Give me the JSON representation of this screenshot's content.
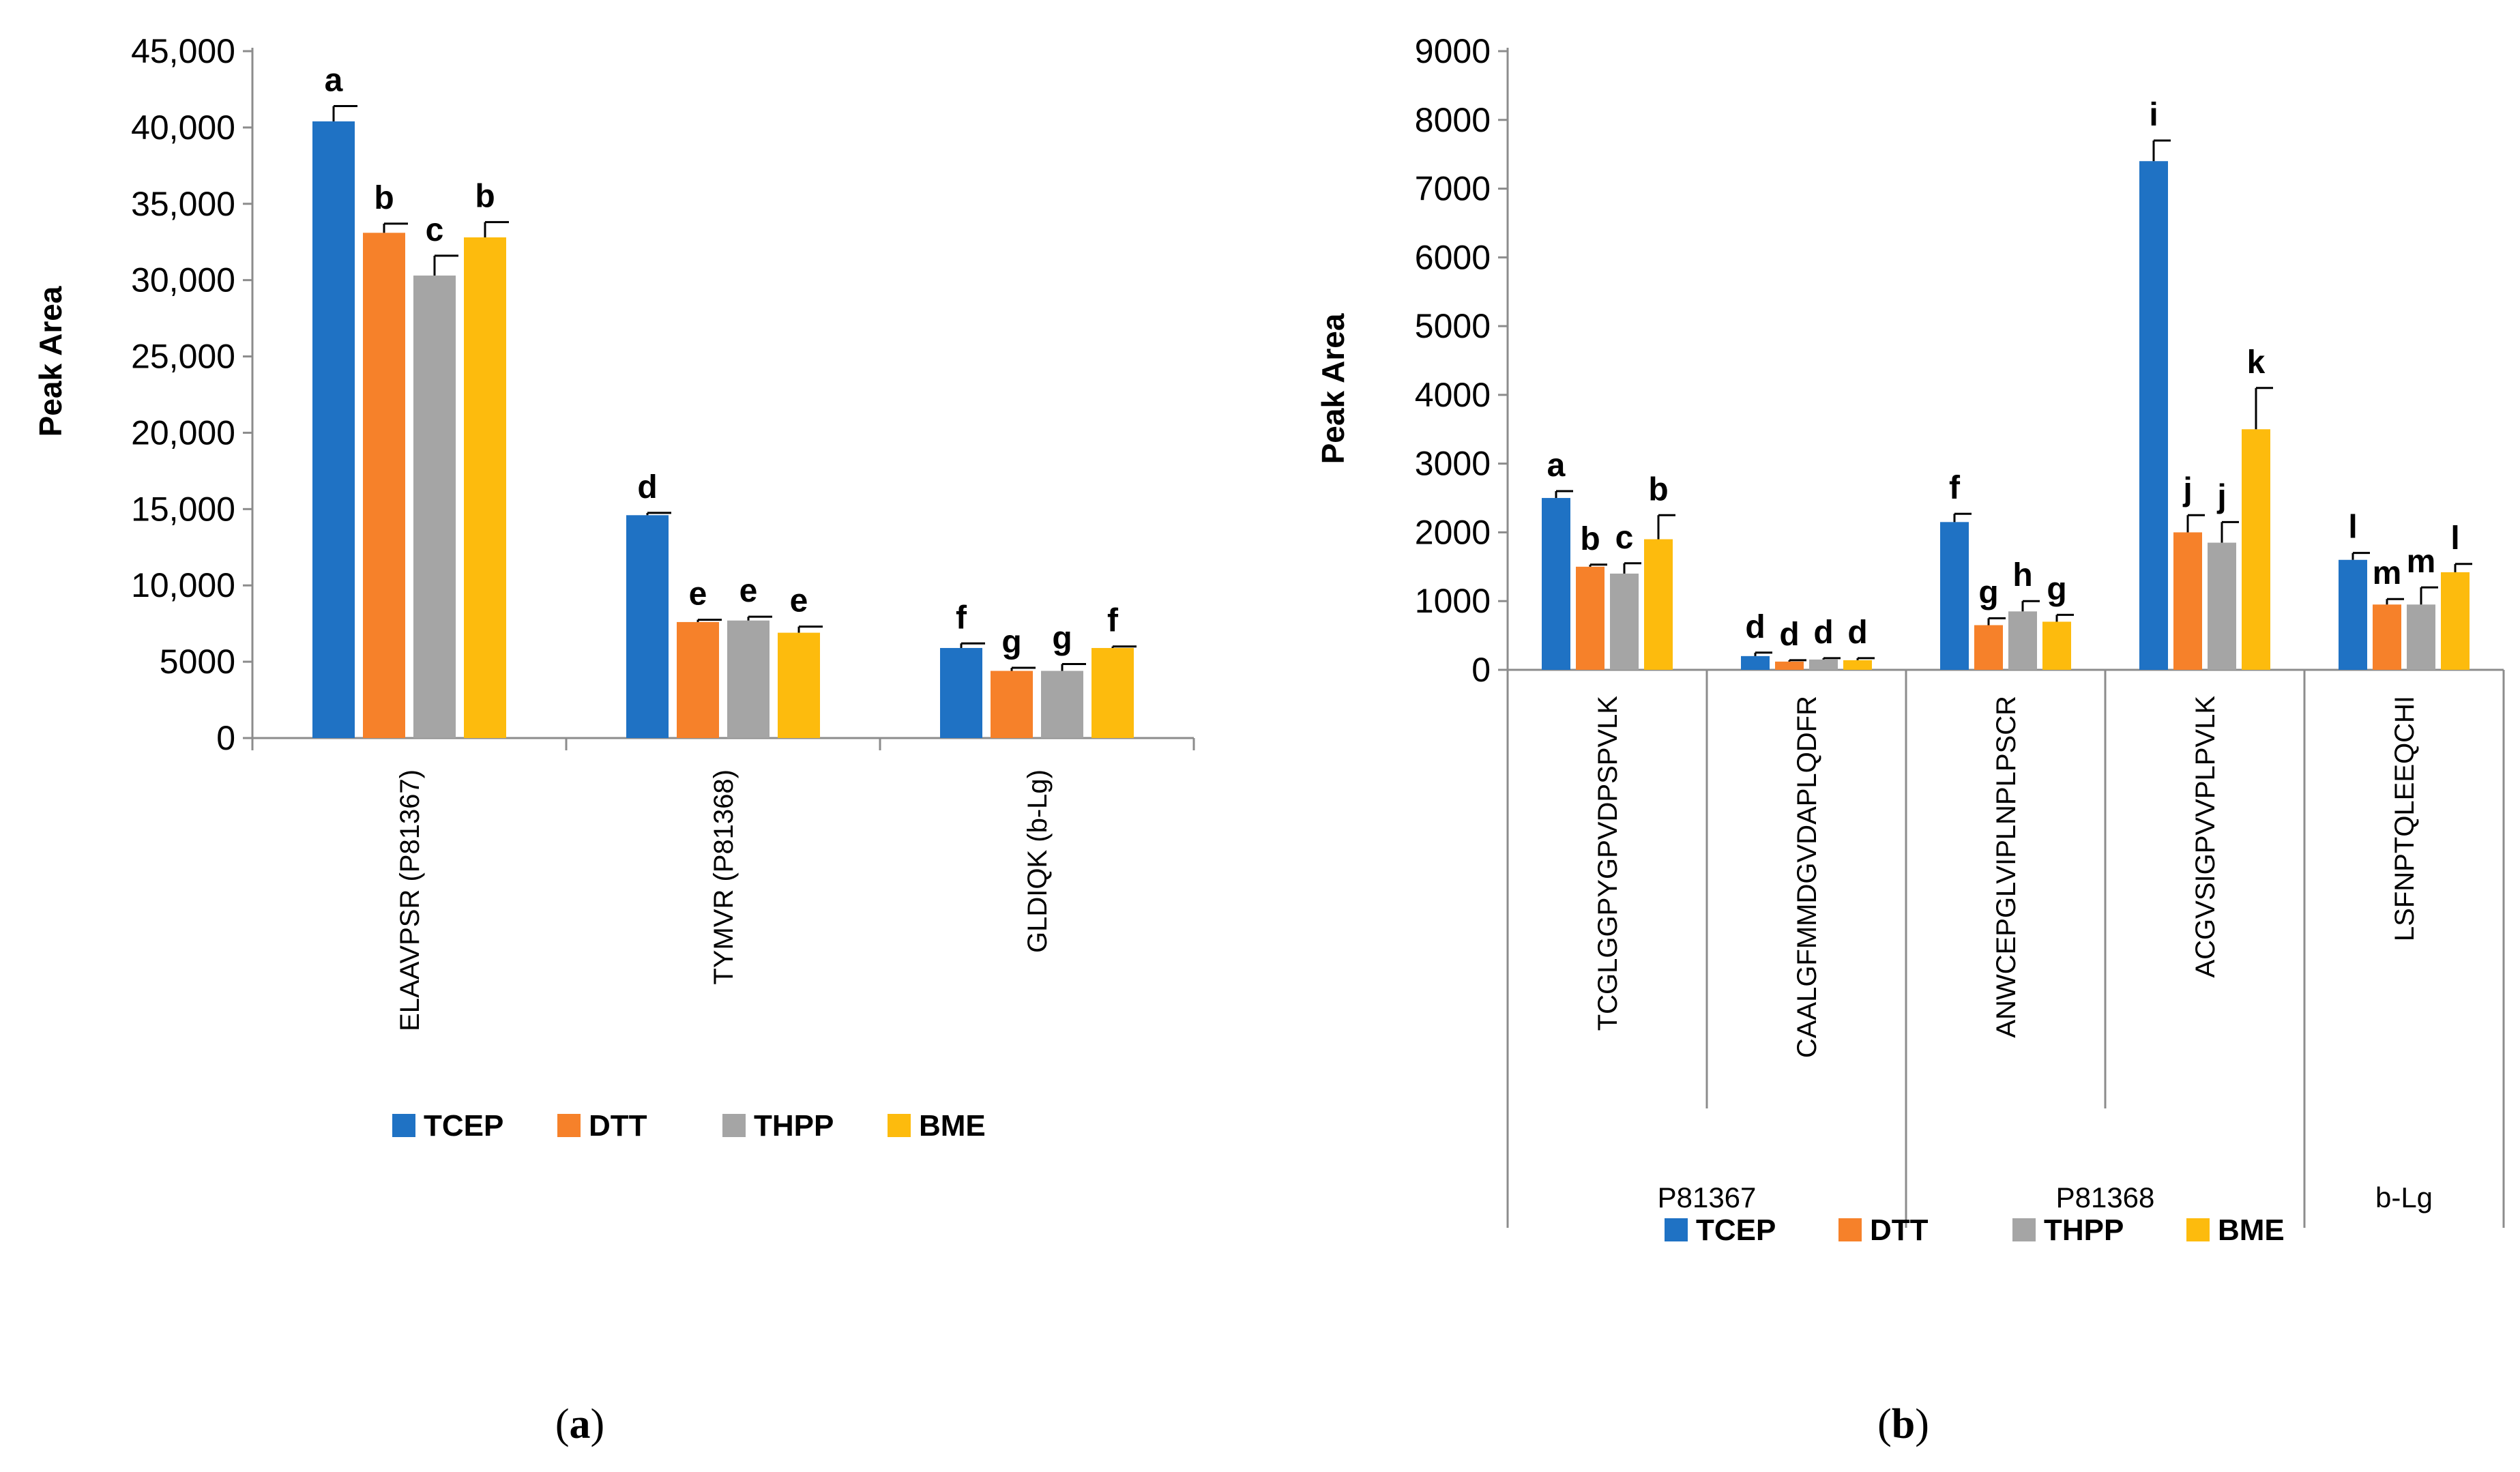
{
  "colors": {
    "TCEP": "#1f72c4",
    "DTT": "#f6812a",
    "THPP": "#a5a5a5",
    "BME": "#fdbb0d"
  },
  "series_names": [
    "TCEP",
    "DTT",
    "THPP",
    "BME"
  ],
  "chart_data": [
    {
      "type": "bar",
      "panel_caption": "a",
      "ylabel": "Peak  Area",
      "ylim": [
        0,
        45000
      ],
      "yticks": [
        "0",
        "5000",
        "10,000",
        "15,000",
        "20,000",
        "25,000",
        "30,000",
        "35,000",
        "40,000",
        "45,000"
      ],
      "categories": [
        "ELAAVPSR (P81367)",
        "TYMVR (P81368)",
        "GLDIQK (b-Lg)"
      ],
      "series": [
        {
          "name": "TCEP",
          "values": [
            40400,
            14600,
            5900
          ],
          "errors": [
            1000,
            150,
            300
          ],
          "letters": [
            "a",
            "d",
            "f"
          ]
        },
        {
          "name": "DTT",
          "values": [
            33100,
            7600,
            4400
          ],
          "errors": [
            600,
            150,
            200
          ],
          "letters": [
            "b",
            "e",
            "g"
          ]
        },
        {
          "name": "THPP",
          "values": [
            30300,
            7700,
            4400
          ],
          "errors": [
            1300,
            250,
            450
          ],
          "letters": [
            "c",
            "e",
            "g"
          ]
        },
        {
          "name": "BME",
          "values": [
            32800,
            6900,
            5900
          ],
          "errors": [
            1000,
            400,
            100
          ],
          "letters": [
            "b",
            "e",
            "f"
          ]
        }
      ],
      "legend": [
        "TCEP",
        "DTT",
        "THPP",
        "BME"
      ]
    },
    {
      "type": "bar",
      "panel_caption": "b",
      "ylabel": "Peak  Area",
      "ylim": [
        0,
        9000
      ],
      "yticks": [
        "0",
        "1000",
        "2000",
        "3000",
        "4000",
        "5000",
        "6000",
        "7000",
        "8000",
        "9000"
      ],
      "categories": [
        "TCGLGGPYGPVDPSPVLK",
        "CAALGFMMDGVDAPLQDFR",
        "ANWCEPGLVIPLNPLPSCR",
        "ACGVSIGPVVPLPVLK",
        "LSFNPTQLEEQCHI"
      ],
      "groups": [
        {
          "label": "P81367",
          "span": [
            0,
            1
          ]
        },
        {
          "label": "P81368",
          "span": [
            2,
            3
          ]
        },
        {
          "label": "b-Lg",
          "span": [
            4,
            4
          ]
        }
      ],
      "series": [
        {
          "name": "TCEP",
          "values": [
            2500,
            200,
            2150,
            7400,
            1600
          ],
          "errors": [
            100,
            50,
            120,
            300,
            100
          ],
          "letters": [
            "a",
            "d",
            "f",
            "i",
            "l"
          ]
        },
        {
          "name": "DTT",
          "values": [
            1500,
            120,
            650,
            2000,
            950
          ],
          "errors": [
            30,
            20,
            100,
            250,
            80
          ],
          "letters": [
            "b",
            "d",
            "g",
            "j",
            "m"
          ]
        },
        {
          "name": "THPP",
          "values": [
            1400,
            150,
            850,
            1850,
            950
          ],
          "errors": [
            150,
            20,
            150,
            300,
            250
          ],
          "letters": [
            "c",
            "d",
            "h",
            "j",
            "m"
          ]
        },
        {
          "name": "BME",
          "values": [
            1900,
            140,
            700,
            3500,
            1420
          ],
          "errors": [
            350,
            30,
            100,
            600,
            120
          ],
          "letters": [
            "b",
            "d",
            "g",
            "k",
            "l"
          ]
        }
      ],
      "legend": [
        "TCEP",
        "DTT",
        "THPP",
        "BME"
      ]
    }
  ]
}
